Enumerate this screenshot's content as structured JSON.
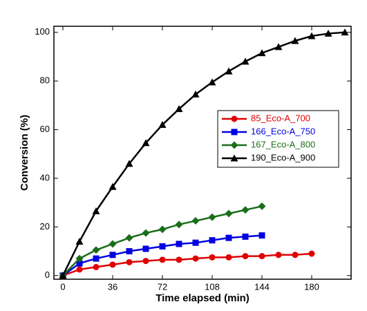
{
  "chart_data": {
    "type": "line",
    "xlabel": "Time elapsed (min)",
    "ylabel": "Conversion (%)",
    "xlim": [
      -6.5,
      208.5
    ],
    "ylim": [
      -1.5,
      102.5
    ],
    "xticks": [
      0,
      36,
      72,
      108,
      144,
      180
    ],
    "yticks": [
      0,
      20,
      40,
      60,
      80,
      100
    ],
    "legend": "center right",
    "series": [
      {
        "name": "85_Eco-A_700",
        "color": "#e00000",
        "marker": "circle",
        "x": [
          0,
          12,
          24,
          36,
          48,
          60,
          72,
          84,
          96,
          108,
          120,
          132,
          144,
          156,
          168,
          180
        ],
        "values": [
          0,
          2.5,
          3.5,
          4.5,
          5.5,
          6,
          6.5,
          6.5,
          7,
          7.5,
          7.5,
          8,
          8,
          8.5,
          8.5,
          9
        ]
      },
      {
        "name": "166_Eco-A_750",
        "color": "#0000e0",
        "marker": "square",
        "x": [
          0,
          12,
          24,
          36,
          48,
          60,
          72,
          84,
          96,
          108,
          120,
          132,
          144
        ],
        "values": [
          0,
          5,
          7,
          8.5,
          10,
          11,
          12,
          13,
          13.5,
          14.5,
          15.5,
          16,
          16.5
        ]
      },
      {
        "name": "167_Eco-A_800",
        "color": "#1a6e1a",
        "marker": "diamond",
        "x": [
          0,
          12,
          24,
          36,
          48,
          60,
          72,
          84,
          96,
          108,
          120,
          132,
          144
        ],
        "values": [
          0,
          7,
          10.5,
          13,
          15.5,
          17.5,
          19,
          21,
          22.5,
          24,
          25.5,
          27,
          28.5
        ]
      },
      {
        "name": "190_Eco-A_900",
        "color": "#000000",
        "marker": "triangle",
        "x": [
          0,
          12,
          24,
          36,
          48,
          60,
          72,
          84,
          96,
          108,
          120,
          132,
          144,
          156,
          168,
          180,
          192,
          204
        ],
        "values": [
          0,
          14,
          26.5,
          36.5,
          46,
          54.5,
          62,
          68.5,
          74.5,
          79.5,
          84,
          88,
          91.5,
          94,
          96.5,
          98.5,
          99.5,
          100
        ]
      }
    ]
  }
}
